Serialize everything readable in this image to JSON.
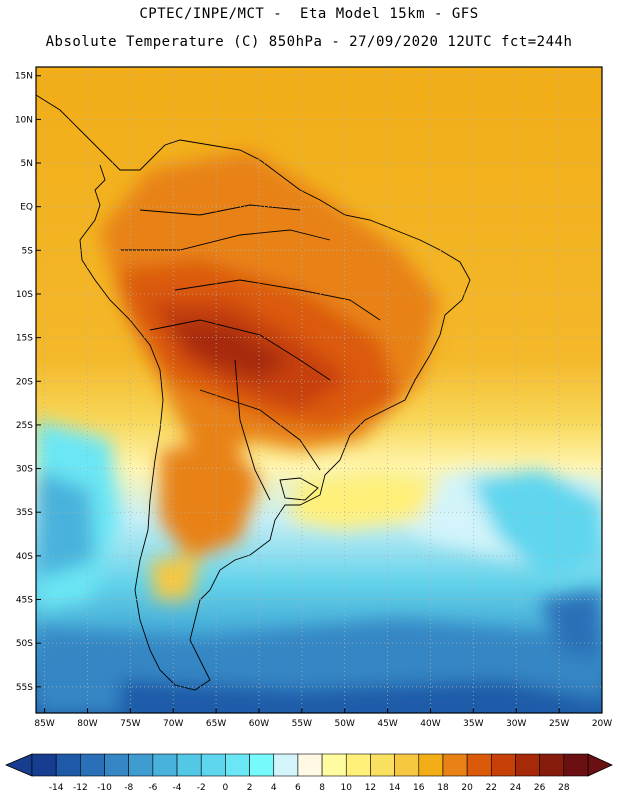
{
  "header": {
    "line1": "CPTEC/INPE/MCT -  Eta Model 15km - GFS",
    "line2": "Absolute Temperature (C) 850hPa - 27/09/2020 12UTC fct=244h"
  },
  "map": {
    "lat_labels": [
      "15N",
      "10N",
      "5N",
      "EQ",
      "5S",
      "10S",
      "15S",
      "20S",
      "25S",
      "30S",
      "35S",
      "40S",
      "45S",
      "50S",
      "55S"
    ],
    "lon_labels": [
      "85W",
      "80W",
      "75W",
      "70W",
      "65W",
      "60W",
      "55W",
      "50W",
      "45W",
      "40W",
      "35W",
      "30W",
      "25W",
      "20W"
    ],
    "lat_range": [
      -58,
      16
    ],
    "lon_range": [
      -86,
      -20
    ]
  },
  "legend": {
    "labels": [
      "-14",
      "-12",
      "-10",
      "-8",
      "-6",
      "-4",
      "-2",
      "0",
      "2",
      "4",
      "6",
      "8",
      "10",
      "12",
      "14",
      "16",
      "18",
      "20",
      "22",
      "24",
      "26",
      "28"
    ],
    "colors": [
      "#163d8f",
      "#1e5aa8",
      "#2a70b8",
      "#3486c4",
      "#3e9cd0",
      "#48b2dc",
      "#52c8e6",
      "#5ed6ee",
      "#6ae6f4",
      "#76fafc",
      "#d2f4fa",
      "#fff8e4",
      "#fffba0",
      "#fff07a",
      "#f9e060",
      "#f6c842",
      "#f2ad17",
      "#e88216",
      "#db5a0a",
      "#c64108",
      "#a62a08",
      "#861c0c",
      "#6a1012"
    ]
  }
}
